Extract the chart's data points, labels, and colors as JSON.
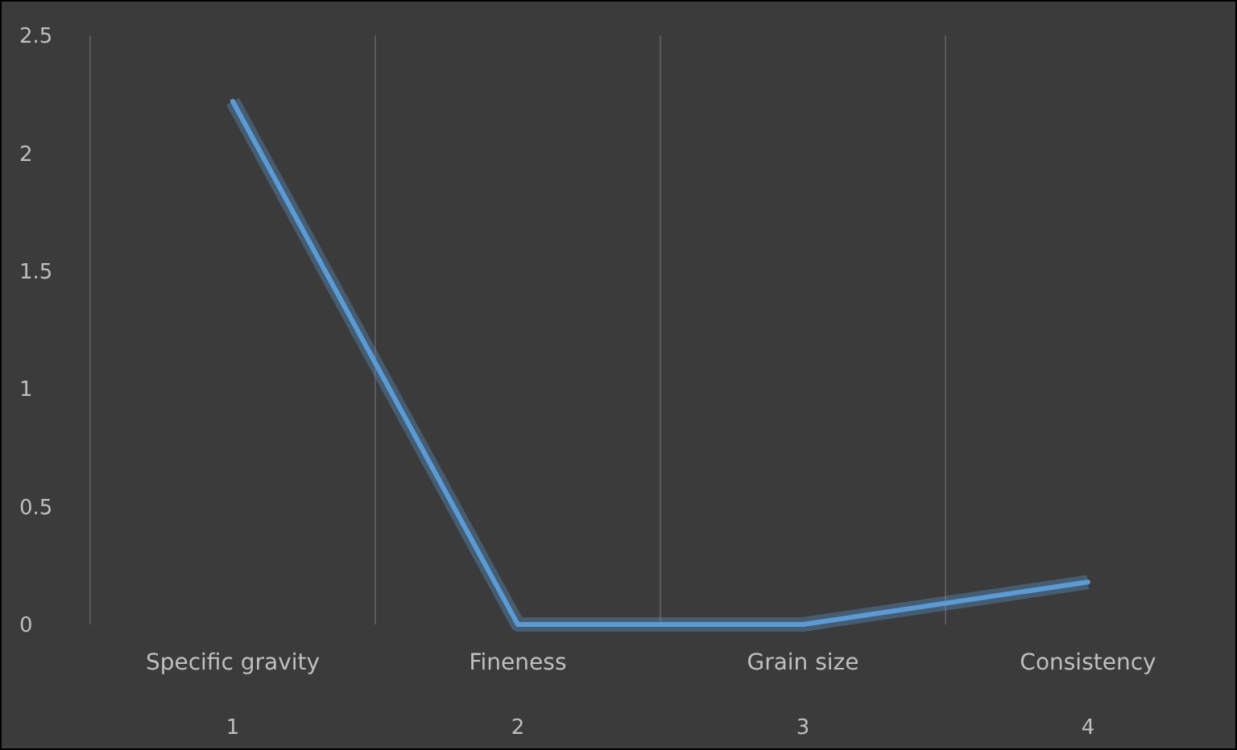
{
  "chart_data": {
    "type": "line",
    "categories": [
      "Specific gravity",
      "Fineness",
      "Grain size",
      "Consistency"
    ],
    "values": [
      2.22,
      0,
      0,
      0.18
    ],
    "color": "#5b9bd5",
    "annotations": [
      "1",
      "2",
      "3",
      "4"
    ],
    "ylim": [
      0,
      2.5
    ],
    "yticks": [
      0,
      0.5,
      1,
      1.5,
      2,
      2.5
    ],
    "grid": "x",
    "marker": "none",
    "line_style": "solid"
  }
}
